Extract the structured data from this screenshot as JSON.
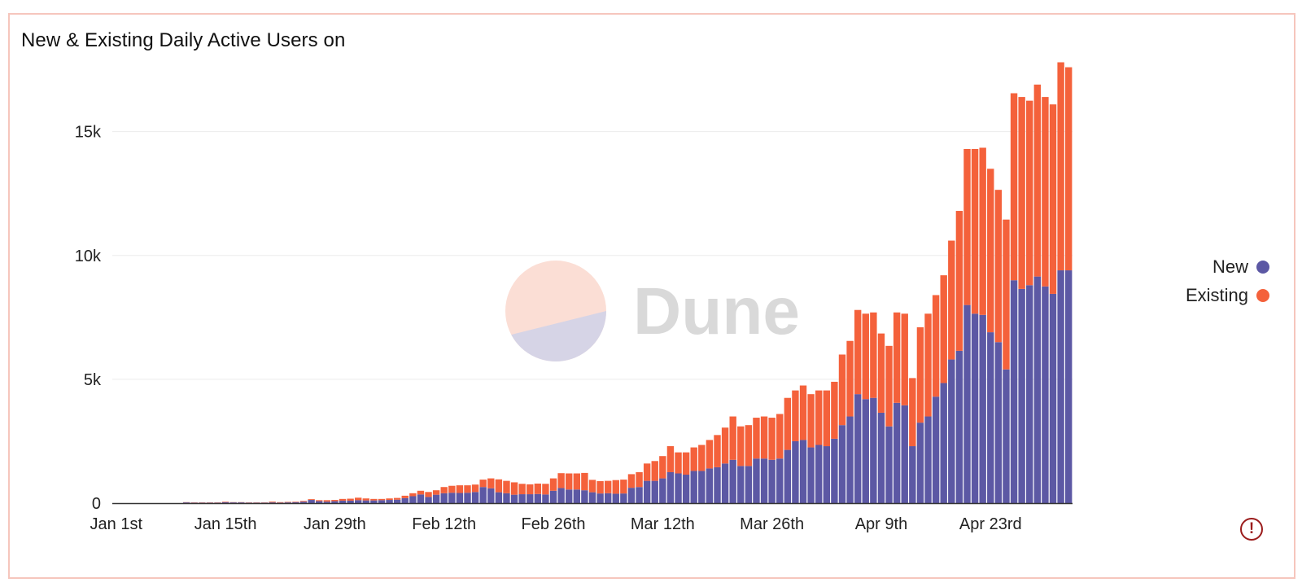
{
  "card": {
    "title": "New & Existing Daily Active Users on"
  },
  "watermark": {
    "text": "Dune",
    "top_color": "#fbded5",
    "bottom_color": "#d6d4e6",
    "text_color": "#d9d9d9"
  },
  "legend": [
    {
      "name": "New",
      "color": "#5c58a4"
    },
    {
      "name": "Existing",
      "color": "#f4613b"
    }
  ],
  "alert_icon": "exclamation-circle-icon",
  "chart_data": {
    "type": "bar",
    "stacked": true,
    "x_start": "Jan 1st",
    "x_tick_labels": [
      "Jan 1st",
      "Jan 15th",
      "Jan 29th",
      "Feb 12th",
      "Feb 26th",
      "Mar 12th",
      "Mar 26th",
      "Apr 9th",
      "Apr 23rd"
    ],
    "x_tick_day_index": [
      0,
      14,
      28,
      42,
      56,
      70,
      84,
      98,
      112
    ],
    "y_ticks": [
      0,
      5000,
      10000,
      15000
    ],
    "y_tick_labels": [
      "0",
      "5k",
      "10k",
      "15k"
    ],
    "ylim": [
      0,
      19000
    ],
    "grid": true,
    "legend_position": "right",
    "series": [
      {
        "name": "New",
        "color": "#5c58a4",
        "values": [
          0,
          0,
          0,
          0,
          0,
          0,
          0,
          0,
          0,
          30,
          20,
          20,
          20,
          20,
          40,
          30,
          30,
          20,
          20,
          20,
          30,
          20,
          30,
          40,
          60,
          130,
          80,
          60,
          80,
          100,
          100,
          120,
          110,
          110,
          120,
          130,
          140,
          200,
          280,
          350,
          250,
          340,
          400,
          420,
          410,
          420,
          450,
          650,
          600,
          440,
          400,
          340,
          360,
          360,
          370,
          350,
          500,
          610,
          550,
          550,
          520,
          440,
          390,
          400,
          380,
          390,
          620,
          650,
          900,
          900,
          1000,
          1250,
          1200,
          1150,
          1300,
          1300,
          1400,
          1450,
          1600,
          1750,
          1500,
          1500,
          1800,
          1800,
          1750,
          1800,
          2150,
          2500,
          2550,
          2250,
          2350,
          2300,
          2600,
          3150,
          3500,
          4400,
          4200,
          4250,
          3650,
          3100,
          4050,
          3950,
          2300,
          3250,
          3500,
          4300,
          4850,
          5800,
          6150,
          8000,
          7650,
          7600,
          6900,
          6500,
          5400,
          9000,
          8650,
          8800,
          9150,
          8750,
          8450,
          9400,
          9400
        ]
      },
      {
        "name": "Existing",
        "color": "#f4613b",
        "values": [
          0,
          0,
          0,
          0,
          0,
          0,
          0,
          0,
          0,
          10,
          10,
          10,
          10,
          10,
          20,
          10,
          10,
          10,
          10,
          10,
          30,
          20,
          20,
          20,
          30,
          30,
          40,
          60,
          50,
          70,
          80,
          100,
          80,
          60,
          50,
          60,
          70,
          100,
          120,
          150,
          200,
          180,
          250,
          280,
          310,
          300,
          300,
          300,
          400,
          520,
          500,
          500,
          420,
          400,
          420,
          430,
          500,
          600,
          650,
          650,
          700,
          500,
          500,
          500,
          550,
          560,
          550,
          600,
          700,
          800,
          900,
          1050,
          850,
          900,
          950,
          1050,
          1150,
          1300,
          1450,
          1750,
          1600,
          1650,
          1650,
          1700,
          1700,
          1800,
          2100,
          2050,
          2200,
          2150,
          2200,
          2250,
          2300,
          2850,
          3050,
          3400,
          3450,
          3450,
          3200,
          3250,
          3650,
          3700,
          2750,
          3850,
          4150,
          4100,
          4350,
          4800,
          5650,
          6300,
          6650,
          6750,
          6600,
          6150,
          6050,
          7550,
          7750,
          7450,
          7750,
          7650,
          7650,
          8400,
          8200
        ]
      }
    ]
  }
}
